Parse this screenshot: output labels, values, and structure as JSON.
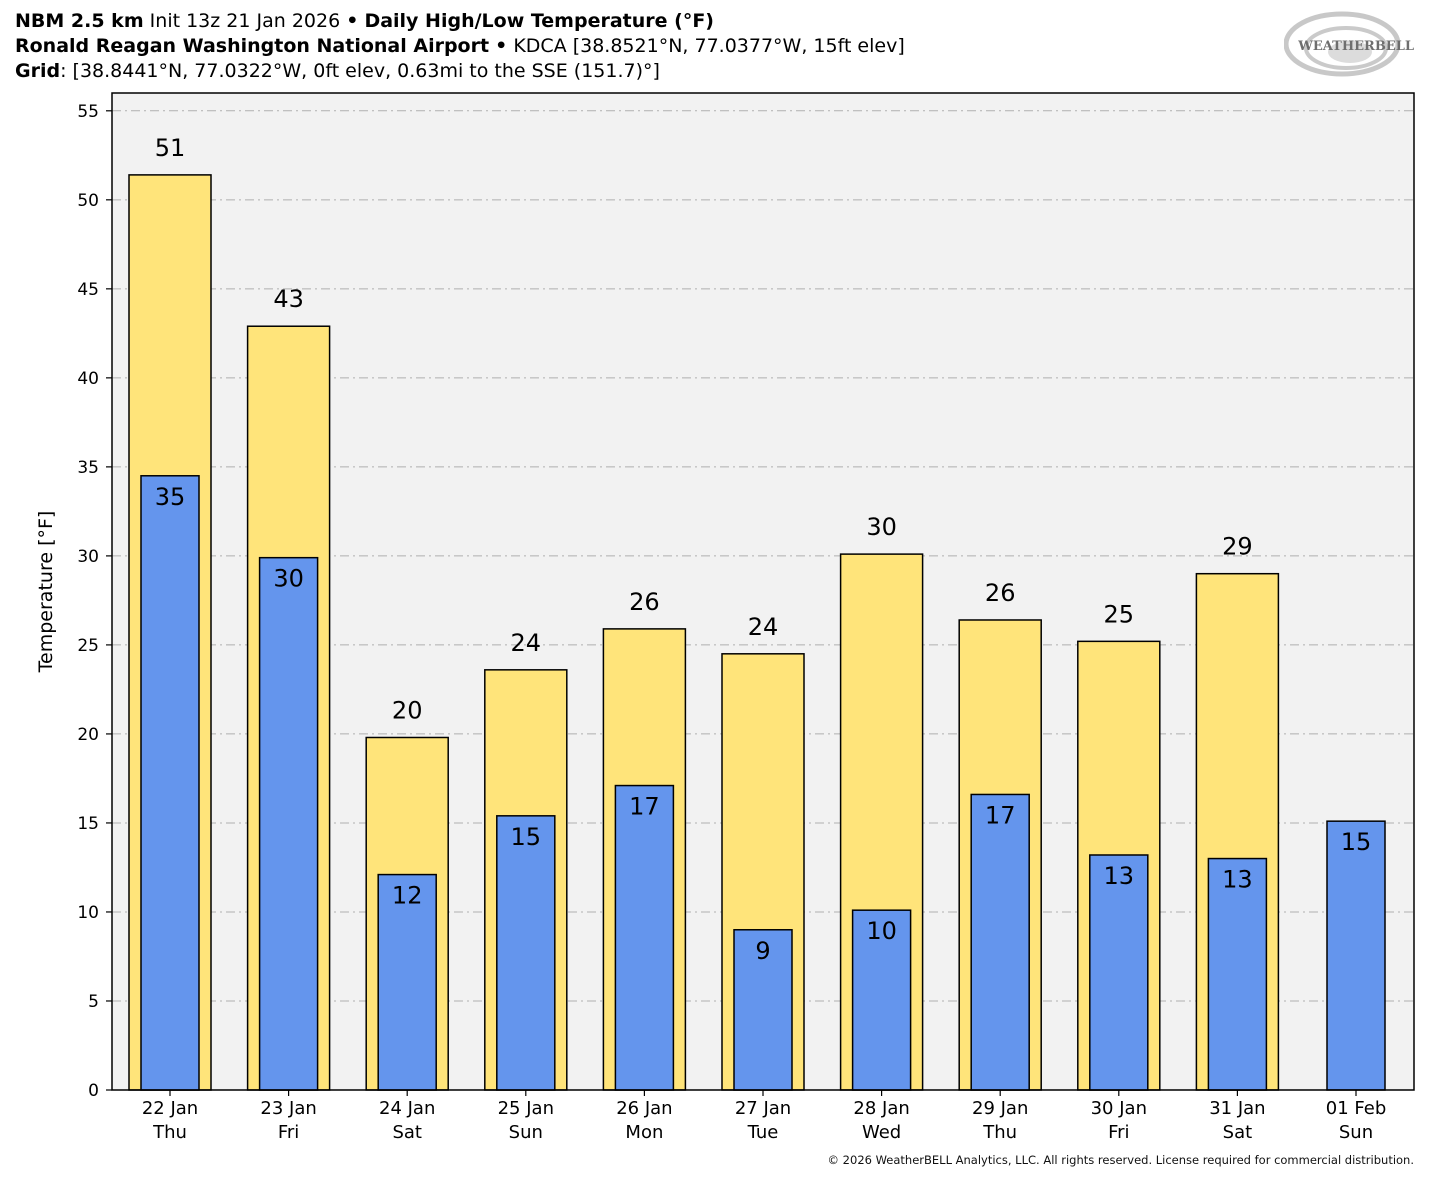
{
  "header": {
    "line1_model": "NBM 2.5 km",
    "line1_init": "Init 13z 21 Jan 2026",
    "line1_sep": "•",
    "line1_product": "Daily High/Low Temperature (°F)",
    "line2_station": "Ronald Reagan Washington National Airport",
    "line2_sep": "•",
    "line2_details": "KDCA [38.8521°N, 77.0377°W, 15ft elev]",
    "line3_label": "Grid",
    "line3_details": ": [38.8441°N, 77.0322°W, 0ft elev, 0.63mi to the SSE (151.7)°]"
  },
  "logo": {
    "text": "WEATHERBELL"
  },
  "footer": {
    "copyright": "© 2026 WeatherBELL Analytics, LLC. All rights reserved. License required for commercial distribution."
  },
  "colors": {
    "high_bar": "#ffe47a",
    "low_bar": "#6495ed",
    "plot_bg": "#f2f2f2",
    "grid": "#b0b0b0"
  },
  "chart_data": {
    "type": "bar",
    "title": "Daily High/Low Temperature (°F)",
    "ylabel": "Temperature [°F]",
    "xlabel": "",
    "ylim": [
      0,
      56
    ],
    "yticks": [
      0,
      5,
      10,
      15,
      20,
      25,
      30,
      35,
      40,
      45,
      50,
      55
    ],
    "grid": true,
    "categories": [
      {
        "date": "22 Jan",
        "day": "Thu"
      },
      {
        "date": "23 Jan",
        "day": "Fri"
      },
      {
        "date": "24 Jan",
        "day": "Sat"
      },
      {
        "date": "25 Jan",
        "day": "Sun"
      },
      {
        "date": "26 Jan",
        "day": "Mon"
      },
      {
        "date": "27 Jan",
        "day": "Tue"
      },
      {
        "date": "28 Jan",
        "day": "Wed"
      },
      {
        "date": "29 Jan",
        "day": "Thu"
      },
      {
        "date": "30 Jan",
        "day": "Fri"
      },
      {
        "date": "31 Jan",
        "day": "Sat"
      },
      {
        "date": "01 Feb",
        "day": "Sun"
      }
    ],
    "series": [
      {
        "name": "High",
        "values": [
          51.4,
          42.9,
          19.8,
          23.6,
          25.9,
          24.5,
          30.1,
          26.4,
          25.2,
          29.0,
          null
        ],
        "labels": [
          "51",
          "43",
          "20",
          "24",
          "26",
          "24",
          "30",
          "26",
          "25",
          "29",
          ""
        ]
      },
      {
        "name": "Low",
        "values": [
          34.5,
          29.9,
          12.1,
          15.4,
          17.1,
          9.0,
          10.1,
          16.6,
          13.2,
          13.0,
          15.1
        ],
        "labels": [
          "35",
          "30",
          "12",
          "15",
          "17",
          "9",
          "10",
          "17",
          "13",
          "13",
          "15"
        ]
      }
    ]
  }
}
